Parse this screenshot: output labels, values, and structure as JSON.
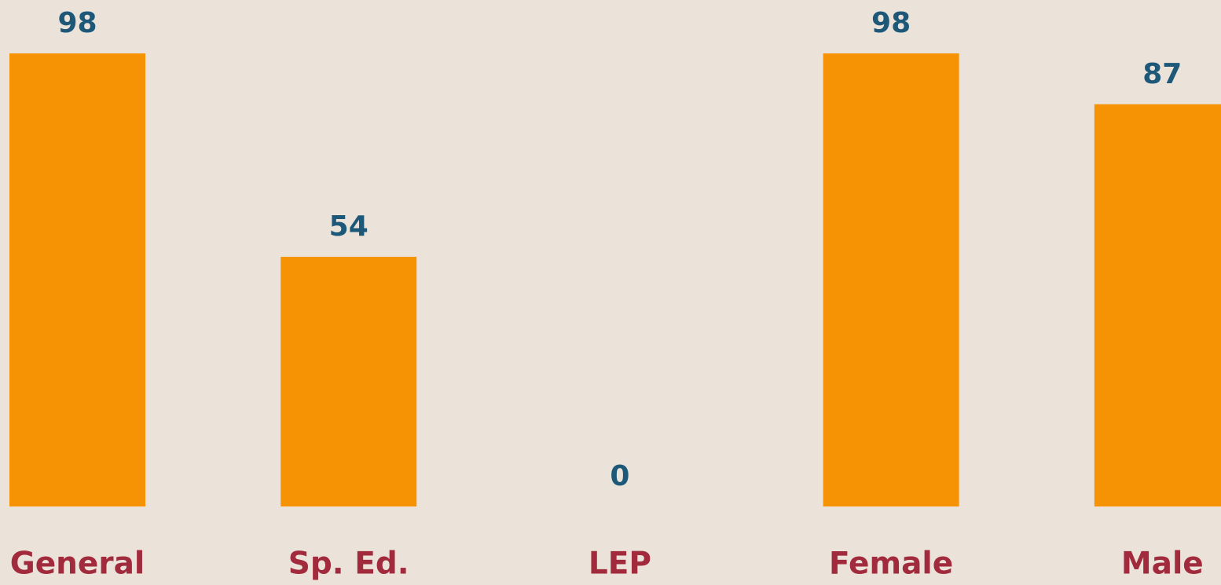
{
  "chart_data": {
    "type": "bar",
    "categories": [
      "General",
      "Sp. Ed.",
      "LEP",
      "Female",
      "Male"
    ],
    "values": [
      98,
      54,
      0,
      98,
      87
    ],
    "color": "#f59305"
  }
}
